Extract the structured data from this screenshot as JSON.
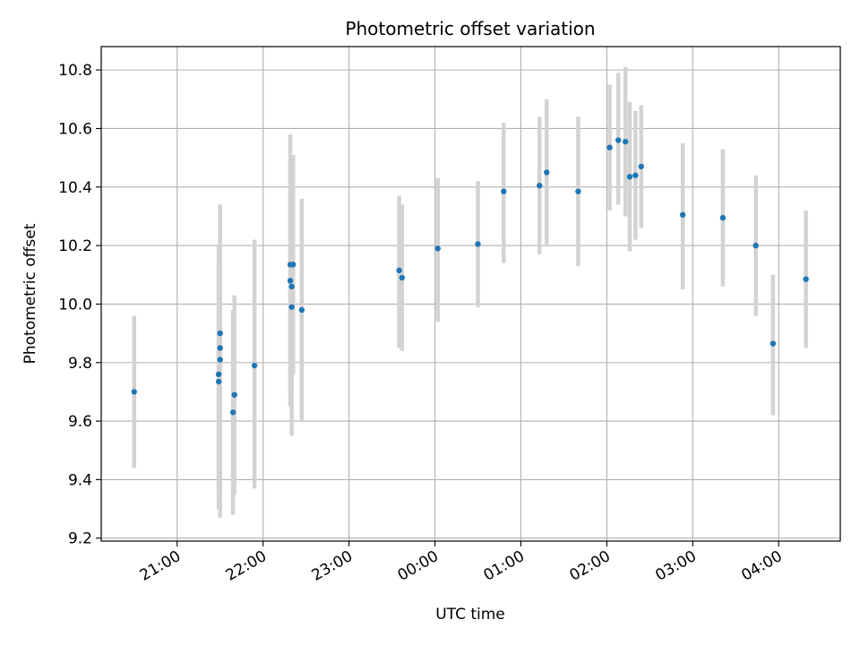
{
  "chart_data": {
    "type": "scatter",
    "title": "Photometric offset variation",
    "xlabel": "UTC time",
    "ylabel": "Photometric offset",
    "x_axis": {
      "type": "time",
      "start": "2000-01-01T20:07",
      "end": "2000-01-02T04:43",
      "ticks": [
        {
          "label": "21:00",
          "time": "2000-01-01T21:00"
        },
        {
          "label": "22:00",
          "time": "2000-01-01T22:00"
        },
        {
          "label": "23:00",
          "time": "2000-01-01T23:00"
        },
        {
          "label": "00:00",
          "time": "2000-01-02T00:00"
        },
        {
          "label": "01:00",
          "time": "2000-01-02T01:00"
        },
        {
          "label": "02:00",
          "time": "2000-01-02T02:00"
        },
        {
          "label": "03:00",
          "time": "2000-01-02T03:00"
        },
        {
          "label": "04:00",
          "time": "2000-01-02T04:00"
        }
      ]
    },
    "y_axis": {
      "range": [
        9.19,
        10.88
      ],
      "ticks": [
        9.2,
        9.4,
        9.6,
        9.8,
        10.0,
        10.2,
        10.4,
        10.6,
        10.8
      ]
    },
    "grid": true,
    "series": [
      {
        "marker_color": "#1f77b4",
        "errorbar_color": "#d3d3d3",
        "points": [
          {
            "time": "2000-01-01T20:30",
            "y": 9.7,
            "lo": 9.44,
            "hi": 9.96
          },
          {
            "time": "2000-01-01T21:29",
            "y": 9.76,
            "lo": 9.3,
            "hi": 10.2
          },
          {
            "time": "2000-01-01T21:29",
            "y": 9.735,
            "lo": 9.35,
            "hi": 10.14
          },
          {
            "time": "2000-01-01T21:30",
            "y": 9.9,
            "lo": 9.45,
            "hi": 10.34
          },
          {
            "time": "2000-01-01T21:30",
            "y": 9.85,
            "lo": 9.27,
            "hi": 10.34
          },
          {
            "time": "2000-01-01T21:30",
            "y": 9.81,
            "lo": 9.3,
            "hi": 10.3
          },
          {
            "time": "2000-01-01T21:40",
            "y": 9.69,
            "lo": 9.35,
            "hi": 10.03
          },
          {
            "time": "2000-01-01T21:39",
            "y": 9.63,
            "lo": 9.28,
            "hi": 9.98
          },
          {
            "time": "2000-01-01T21:54",
            "y": 9.79,
            "lo": 9.37,
            "hi": 10.22
          },
          {
            "time": "2000-01-01T22:19",
            "y": 10.135,
            "lo": 9.69,
            "hi": 10.58
          },
          {
            "time": "2000-01-01T22:19",
            "y": 10.08,
            "lo": 9.65,
            "hi": 10.5
          },
          {
            "time": "2000-01-01T22:20",
            "y": 10.06,
            "lo": 9.7,
            "hi": 10.42
          },
          {
            "time": "2000-01-01T22:20",
            "y": 9.99,
            "lo": 9.55,
            "hi": 10.43
          },
          {
            "time": "2000-01-01T22:21",
            "y": 10.135,
            "lo": 9.76,
            "hi": 10.51
          },
          {
            "time": "2000-01-01T22:27",
            "y": 9.98,
            "lo": 9.6,
            "hi": 10.36
          },
          {
            "time": "2000-01-01T23:35",
            "y": 10.115,
            "lo": 9.85,
            "hi": 10.37
          },
          {
            "time": "2000-01-01T23:37",
            "y": 10.09,
            "lo": 9.84,
            "hi": 10.34
          },
          {
            "time": "2000-01-02T00:02",
            "y": 10.19,
            "lo": 9.94,
            "hi": 10.43
          },
          {
            "time": "2000-01-02T00:30",
            "y": 10.205,
            "lo": 9.99,
            "hi": 10.42
          },
          {
            "time": "2000-01-02T00:48",
            "y": 10.385,
            "lo": 10.14,
            "hi": 10.62
          },
          {
            "time": "2000-01-02T01:13",
            "y": 10.405,
            "lo": 10.17,
            "hi": 10.64
          },
          {
            "time": "2000-01-02T01:18",
            "y": 10.45,
            "lo": 10.2,
            "hi": 10.7
          },
          {
            "time": "2000-01-02T01:40",
            "y": 10.385,
            "lo": 10.13,
            "hi": 10.64
          },
          {
            "time": "2000-01-02T02:02",
            "y": 10.535,
            "lo": 10.32,
            "hi": 10.75
          },
          {
            "time": "2000-01-02T02:08",
            "y": 10.56,
            "lo": 10.34,
            "hi": 10.79
          },
          {
            "time": "2000-01-02T02:13",
            "y": 10.555,
            "lo": 10.3,
            "hi": 10.81
          },
          {
            "time": "2000-01-02T02:16",
            "y": 10.435,
            "lo": 10.18,
            "hi": 10.69
          },
          {
            "time": "2000-01-02T02:20",
            "y": 10.44,
            "lo": 10.22,
            "hi": 10.66
          },
          {
            "time": "2000-01-02T02:24",
            "y": 10.47,
            "lo": 10.26,
            "hi": 10.68
          },
          {
            "time": "2000-01-02T02:53",
            "y": 10.305,
            "lo": 10.05,
            "hi": 10.55
          },
          {
            "time": "2000-01-02T03:21",
            "y": 10.295,
            "lo": 10.06,
            "hi": 10.53
          },
          {
            "time": "2000-01-02T03:44",
            "y": 10.2,
            "lo": 9.96,
            "hi": 10.44
          },
          {
            "time": "2000-01-02T03:56",
            "y": 9.865,
            "lo": 9.62,
            "hi": 10.1
          },
          {
            "time": "2000-01-02T04:19",
            "y": 10.085,
            "lo": 9.85,
            "hi": 10.32
          }
        ]
      }
    ]
  }
}
